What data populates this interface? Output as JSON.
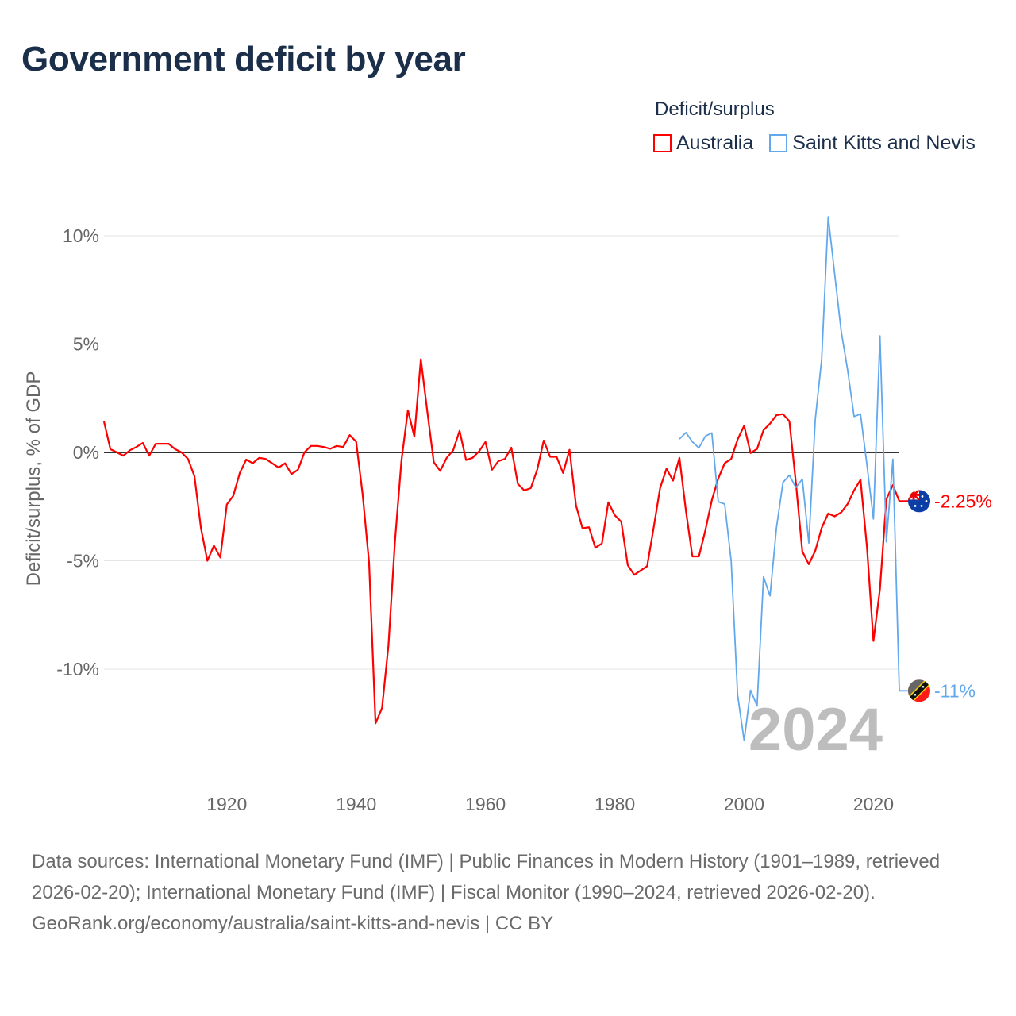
{
  "title": "Government deficit by year",
  "legend": {
    "title": "Deficit/surplus",
    "items": [
      {
        "label": "Australia",
        "color": "#ff0000"
      },
      {
        "label": "Saint Kitts and Nevis",
        "color": "#62a8ec"
      }
    ]
  },
  "year_label": "2024",
  "footer": {
    "sources": "Data sources: International Monetary Fund (IMF) | Public Finances in Modern History (1901–1989, retrieved 2026-02-20); International Monetary Fund (IMF) | Fiscal Monitor (1990–2024, retrieved 2026-02-20).",
    "link": "GeoRank.org/economy/australia/saint-kitts-and-nevis | CC BY"
  },
  "chart_data": {
    "type": "line",
    "title": "Government deficit by year",
    "xlabel": "",
    "ylabel": "Deficit/surplus, % of GDP",
    "xlim": [
      1901,
      2024
    ],
    "ylim": [
      -14,
      11
    ],
    "x_ticks": [
      1920,
      1940,
      1960,
      1980,
      2000,
      2020
    ],
    "y_ticks": [
      10,
      5,
      0,
      -5,
      -10
    ],
    "y_tick_labels": [
      "10%",
      "5%",
      "0%",
      "-5%",
      "-10%"
    ],
    "grid": true,
    "legend_position": "top-right",
    "series": [
      {
        "name": "Australia",
        "color": "#ff0000",
        "start_year": 1901,
        "end_label": "-2.25%",
        "values": [
          1.43,
          0.15,
          0,
          -0.15,
          0.1,
          0.25,
          0.44,
          -0.15,
          0.4,
          0.4,
          0.4,
          0.15,
          0,
          -0.3,
          -1.1,
          -3.5,
          -5.0,
          -4.3,
          -4.85,
          -2.4,
          -2.0,
          -0.95,
          -0.33,
          -0.5,
          -0.25,
          -0.3,
          -0.5,
          -0.7,
          -0.5,
          -1.0,
          -0.8,
          0.0,
          0.3,
          0.3,
          0.25,
          0.17,
          0.3,
          0.25,
          0.8,
          0.5,
          -1.95,
          -5.1,
          -12.5,
          -11.8,
          -8.9,
          -4.1,
          -0.4,
          1.95,
          0.73,
          4.3,
          1.9,
          -0.45,
          -0.85,
          -0.25,
          0.1,
          1.0,
          -0.35,
          -0.25,
          0.05,
          0.48,
          -0.8,
          -0.4,
          -0.3,
          0.22,
          -1.45,
          -1.75,
          -1.65,
          -0.8,
          0.55,
          -0.2,
          -0.2,
          -0.95,
          0.12,
          -2.45,
          -3.5,
          -3.45,
          -4.4,
          -4.2,
          -2.3,
          -2.9,
          -3.2,
          -5.2,
          -5.65,
          -5.45,
          -5.25,
          -3.5,
          -1.65,
          -0.75,
          -1.3,
          -0.25,
          -2.7,
          -4.8,
          -4.8,
          -3.6,
          -2.2,
          -1.2,
          -0.5,
          -0.3,
          0.6,
          1.23,
          -0.03,
          0.16,
          1.03,
          1.33,
          1.72,
          1.77,
          1.44,
          -1.4,
          -4.57,
          -5.16,
          -4.54,
          -3.48,
          -2.82,
          -2.95,
          -2.77,
          -2.38,
          -1.75,
          -1.26,
          -4.4,
          -8.7,
          -6.3,
          -2.16,
          -1.5,
          -2.25
        ]
      },
      {
        "name": "Saint Kitts and Nevis",
        "color": "#62a8ec",
        "start_year": 1990,
        "end_label": "-11%",
        "values": [
          0.62,
          0.92,
          0.49,
          0.21,
          0.75,
          0.9,
          -2.28,
          -2.38,
          -5.03,
          -11.2,
          -13.3,
          -10.97,
          -11.7,
          -5.74,
          -6.62,
          -3.48,
          -1.39,
          -1.05,
          -1.62,
          -1.23,
          -4.18,
          1.52,
          4.31,
          10.87,
          8.25,
          5.62,
          3.82,
          1.66,
          1.77,
          -0.6,
          -3.07,
          5.38,
          -4.13,
          -0.31,
          -11.0
        ]
      }
    ]
  }
}
